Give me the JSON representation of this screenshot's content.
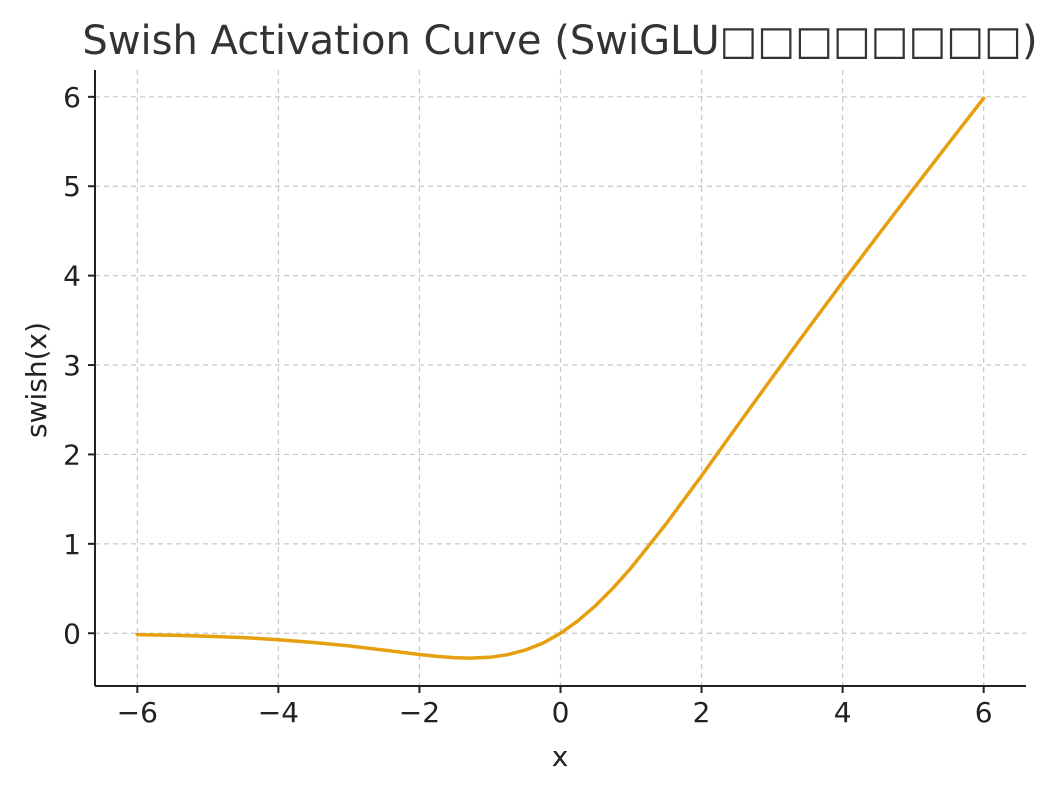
{
  "chart_data": {
    "type": "line",
    "title": "Swish Activation Curve (SwiGLU□□□□□□□□)",
    "xlabel": "x",
    "ylabel": "swish(x)",
    "xlim": [
      -6.6,
      6.6
    ],
    "ylim": [
      -0.59,
      6.3
    ],
    "xticks": [
      -6,
      -4,
      -2,
      0,
      2,
      4,
      6
    ],
    "xtick_labels": [
      "−6",
      "−4",
      "−2",
      "0",
      "2",
      "4",
      "6"
    ],
    "yticks": [
      0,
      1,
      2,
      3,
      4,
      5,
      6
    ],
    "ytick_labels": [
      "0",
      "1",
      "2",
      "3",
      "4",
      "5",
      "6"
    ],
    "grid": true,
    "series": [
      {
        "color": "#e6a00f",
        "x": [
          -6,
          -5.5,
          -5,
          -4.5,
          -4,
          -3.5,
          -3,
          -2.5,
          -2,
          -1.75,
          -1.5,
          -1.28,
          -1,
          -0.75,
          -0.5,
          -0.25,
          0,
          0.25,
          0.5,
          0.75,
          1,
          1.5,
          2,
          2.5,
          3,
          3.5,
          4,
          4.5,
          5,
          5.5,
          6
        ],
        "y": [
          -0.015,
          -0.022,
          -0.033,
          -0.049,
          -0.072,
          -0.103,
          -0.142,
          -0.188,
          -0.238,
          -0.259,
          -0.274,
          -0.278,
          -0.269,
          -0.24,
          -0.189,
          -0.11,
          0,
          0.14,
          0.311,
          0.51,
          0.731,
          1.226,
          1.762,
          2.312,
          2.858,
          3.397,
          3.928,
          4.451,
          4.967,
          5.477,
          5.985
        ]
      }
    ]
  }
}
